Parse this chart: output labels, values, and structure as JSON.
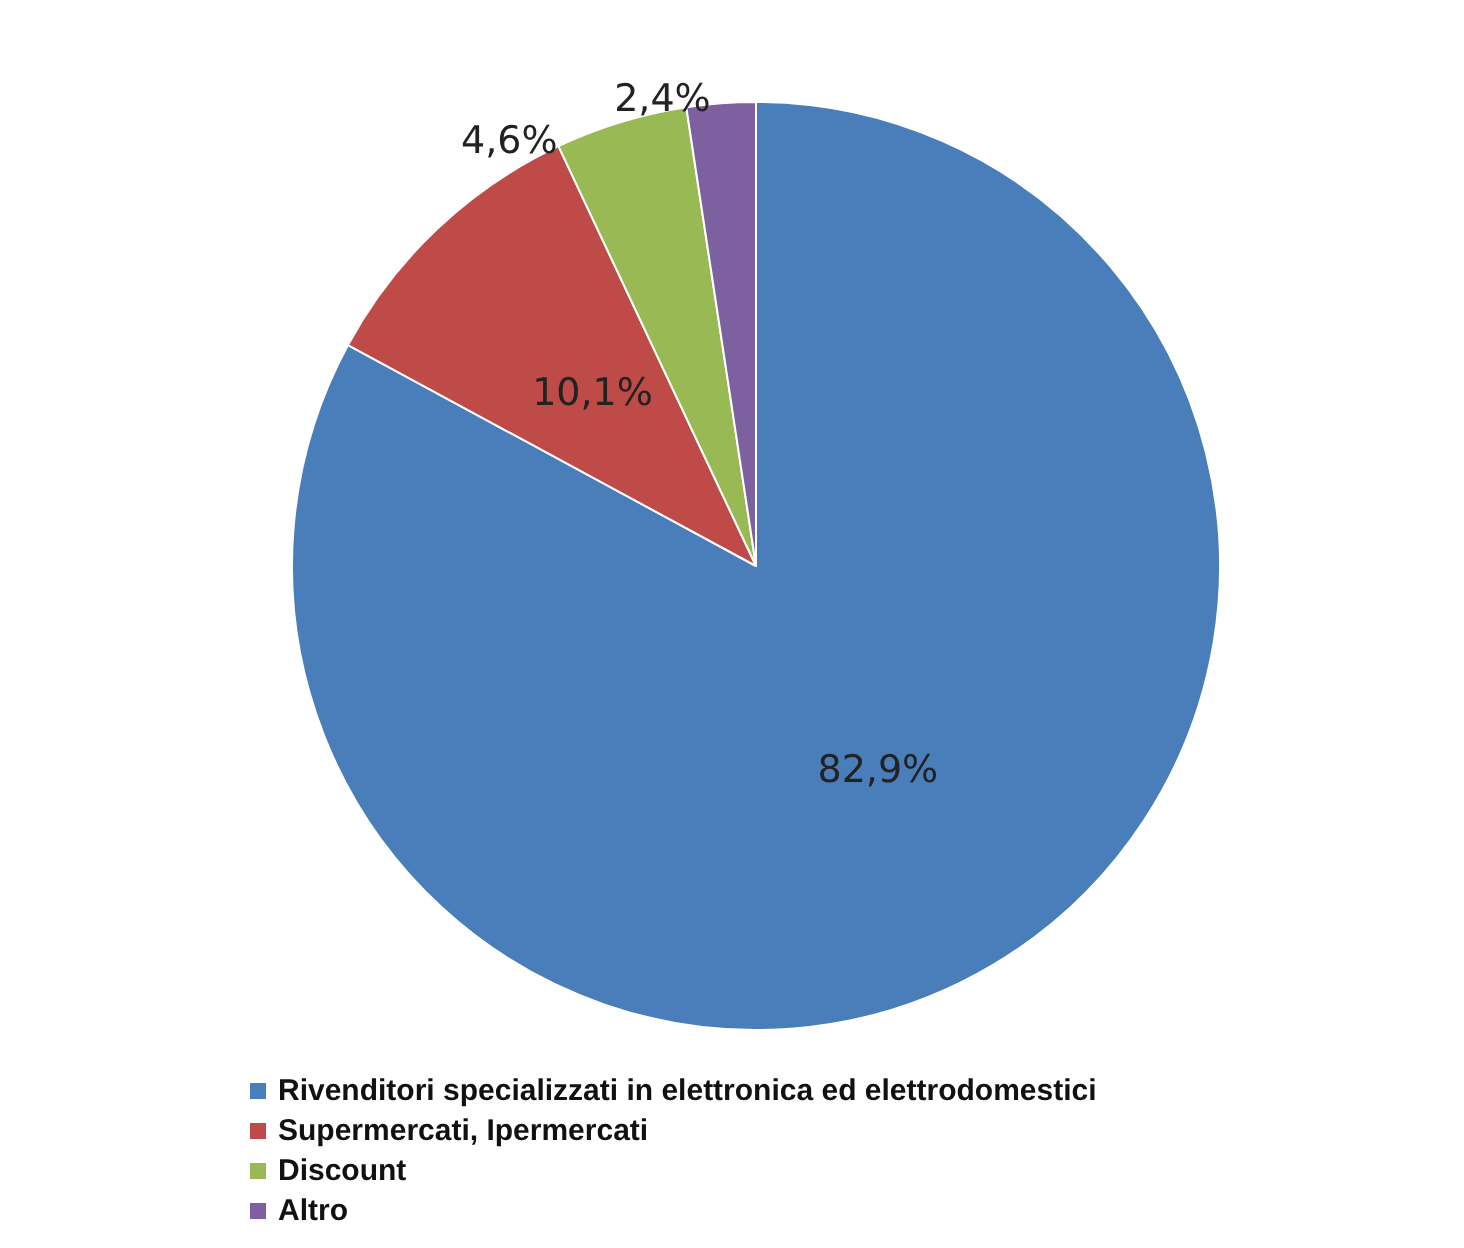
{
  "chart_data": {
    "type": "pie",
    "categories": [
      "Rivenditori specializzati in elettronica ed elettrodomestici",
      "Supermercati, Ipermercati",
      "Discount",
      "Altro"
    ],
    "values": [
      82.9,
      10.1,
      4.6,
      2.4
    ],
    "value_labels": [
      "82,9%",
      "10,1%",
      "4,6%",
      "2,4%"
    ],
    "colors": [
      "#4a7ebb",
      "#be4b48",
      "#98b954",
      "#7d60a0"
    ],
    "legend": "bottom"
  }
}
